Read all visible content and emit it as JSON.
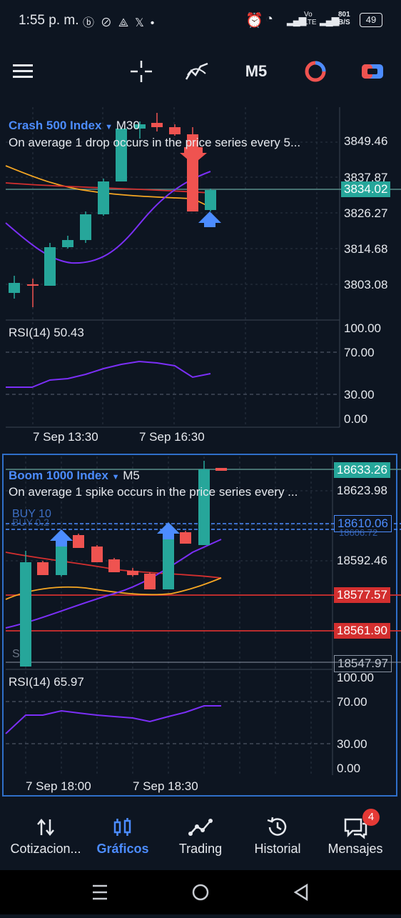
{
  "status": {
    "time": "1:55 p. m.",
    "net1": "Vo",
    "net2": "LTE",
    "speed_value": "801",
    "speed_unit": "B/S",
    "battery": "49"
  },
  "toolbar": {
    "timeframe": "M5"
  },
  "chart1": {
    "symbol": "Crash 500 Index",
    "timeframe": "M30",
    "desc": "On average 1 drop occurs in the price series every 5...",
    "price_labels": [
      "3849.46",
      "3837.87",
      "3826.27",
      "3814.68",
      "3803.08"
    ],
    "current_price": "3834.02",
    "rsi_title": "RSI(14) 50.43",
    "rsi_levels": [
      "100.00",
      "70.00",
      "30.00",
      "0.00"
    ],
    "time_labels": [
      "7 Sep 13:30",
      "7 Sep 16:30"
    ]
  },
  "chart2": {
    "symbol": "Boom 1000 Index",
    "timeframe": "M5",
    "desc": "On average 1 spike occurs in the price series every ...",
    "price_labels": [
      "18623.98",
      "18592.46"
    ],
    "current_price": "18633.26",
    "buy_line_price": "18610.06",
    "buy_overlap": "18606.72",
    "red_line_1": "18577.57",
    "red_line_2": "18561.90",
    "low_line": "18547.97",
    "buy_label": "BUY 10",
    "buy_label_2": "BUY 0.2",
    "s_marker": "S",
    "rsi_title": "RSI(14) 65.97",
    "rsi_levels": [
      "100.00",
      "70.00",
      "30.00",
      "0.00"
    ],
    "time_labels": [
      "7 Sep 18:00",
      "7 Sep 18:30"
    ]
  },
  "nav": {
    "items": [
      {
        "label": "Cotizacion...",
        "icon": "arrows-updown-icon"
      },
      {
        "label": "Gráficos",
        "icon": "candles-icon"
      },
      {
        "label": "Trading",
        "icon": "trend-icon"
      },
      {
        "label": "Historial",
        "icon": "history-icon"
      },
      {
        "label": "Mensajes",
        "icon": "chat-icon"
      }
    ],
    "badge": "4"
  },
  "colors": {
    "bg": "#0d1521",
    "bull": "#26a69a",
    "bear": "#ef5350",
    "accent": "#4c8cff",
    "ma_purple": "#7b2ff7",
    "ma_orange": "#f5a623",
    "ma_red": "#d32f2f"
  }
}
